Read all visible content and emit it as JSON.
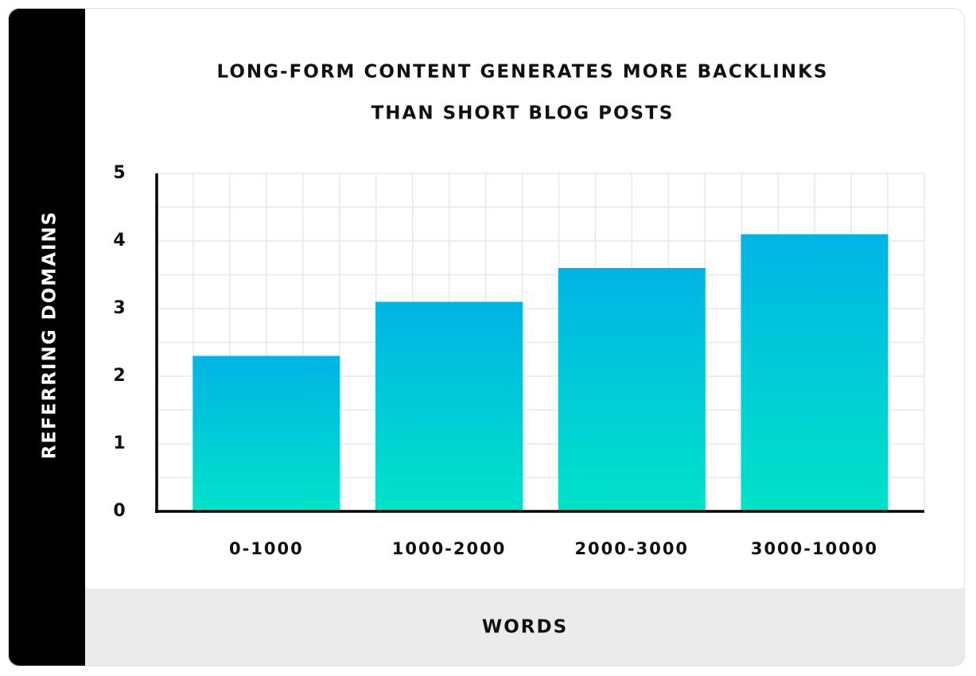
{
  "chart_data": {
    "type": "bar",
    "title": [
      "LONG-FORM CONTENT GENERATES MORE BACKLINKS",
      "THAN SHORT BLOG POSTS"
    ],
    "y_label": "REFERRING DOMAINS",
    "x_label": "WORDS",
    "categories": [
      "0-1000",
      "1000-2000",
      "2000-3000",
      "3000-10000"
    ],
    "values": [
      2.3,
      3.1,
      3.6,
      4.1
    ],
    "color": [
      "#00b4e6",
      "#00e3c8"
    ],
    "ylim": [
      0,
      5
    ],
    "yticks": [
      0,
      1,
      2,
      3,
      4,
      5
    ],
    "grid": true
  }
}
